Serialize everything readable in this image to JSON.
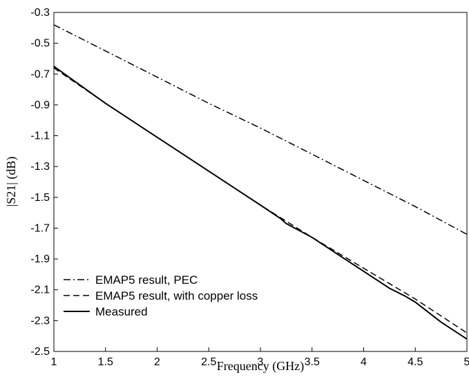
{
  "chart_data": {
    "type": "line",
    "xlabel": "Frequency (GHz)",
    "ylabel": "|S21| (dB)",
    "xlim": [
      1,
      5
    ],
    "ylim": [
      -2.5,
      -0.3
    ],
    "xticks": [
      1,
      1.5,
      2,
      2.5,
      3,
      3.5,
      4,
      4.5,
      5
    ],
    "xtick_labels": [
      "1",
      "1.5",
      "2",
      "2.5",
      "3",
      "3.5",
      "4",
      "4.5",
      "5"
    ],
    "yticks": [
      -2.5,
      -2.3,
      -2.1,
      -1.9,
      -1.7,
      -1.5,
      -1.3,
      -1.1,
      -0.9,
      -0.7,
      -0.5,
      -0.3
    ],
    "ytick_labels": [
      "-2.5",
      "-2.3",
      "-2.1",
      "-1.9",
      "-1.7",
      "-1.5",
      "-1.3",
      "-1.1",
      "-0.9",
      "-0.7",
      "-0.5",
      "-0.3"
    ],
    "grid": false,
    "legend_position": "bottom-left",
    "series": [
      {
        "name": "EMAP5 result, PEC",
        "style": "dash-dot",
        "color": "#000000",
        "x": [
          1,
          1.5,
          2,
          2.5,
          3,
          3.5,
          4,
          4.5,
          5
        ],
        "y": [
          -0.38,
          -0.55,
          -0.72,
          -0.89,
          -1.05,
          -1.22,
          -1.39,
          -1.56,
          -1.74
        ]
      },
      {
        "name": "EMAP5 result, with copper loss",
        "style": "dashed",
        "color": "#000000",
        "x": [
          1,
          1.5,
          2,
          2.5,
          3,
          3.5,
          4,
          4.5,
          5
        ],
        "y": [
          -0.66,
          -0.89,
          -1.11,
          -1.33,
          -1.55,
          -1.76,
          -1.96,
          -2.16,
          -2.38
        ]
      },
      {
        "name": "Measured",
        "style": "solid",
        "color": "#000000",
        "x": [
          1,
          1.25,
          1.5,
          1.75,
          2,
          2.25,
          2.5,
          2.75,
          3,
          3.2,
          3.25,
          3.5,
          3.75,
          4,
          4.25,
          4.4,
          4.5,
          4.75,
          5
        ],
        "y": [
          -0.65,
          -0.77,
          -0.89,
          -1.0,
          -1.11,
          -1.22,
          -1.33,
          -1.44,
          -1.55,
          -1.64,
          -1.67,
          -1.76,
          -1.87,
          -1.98,
          -2.09,
          -2.14,
          -2.18,
          -2.31,
          -2.42
        ]
      }
    ]
  }
}
